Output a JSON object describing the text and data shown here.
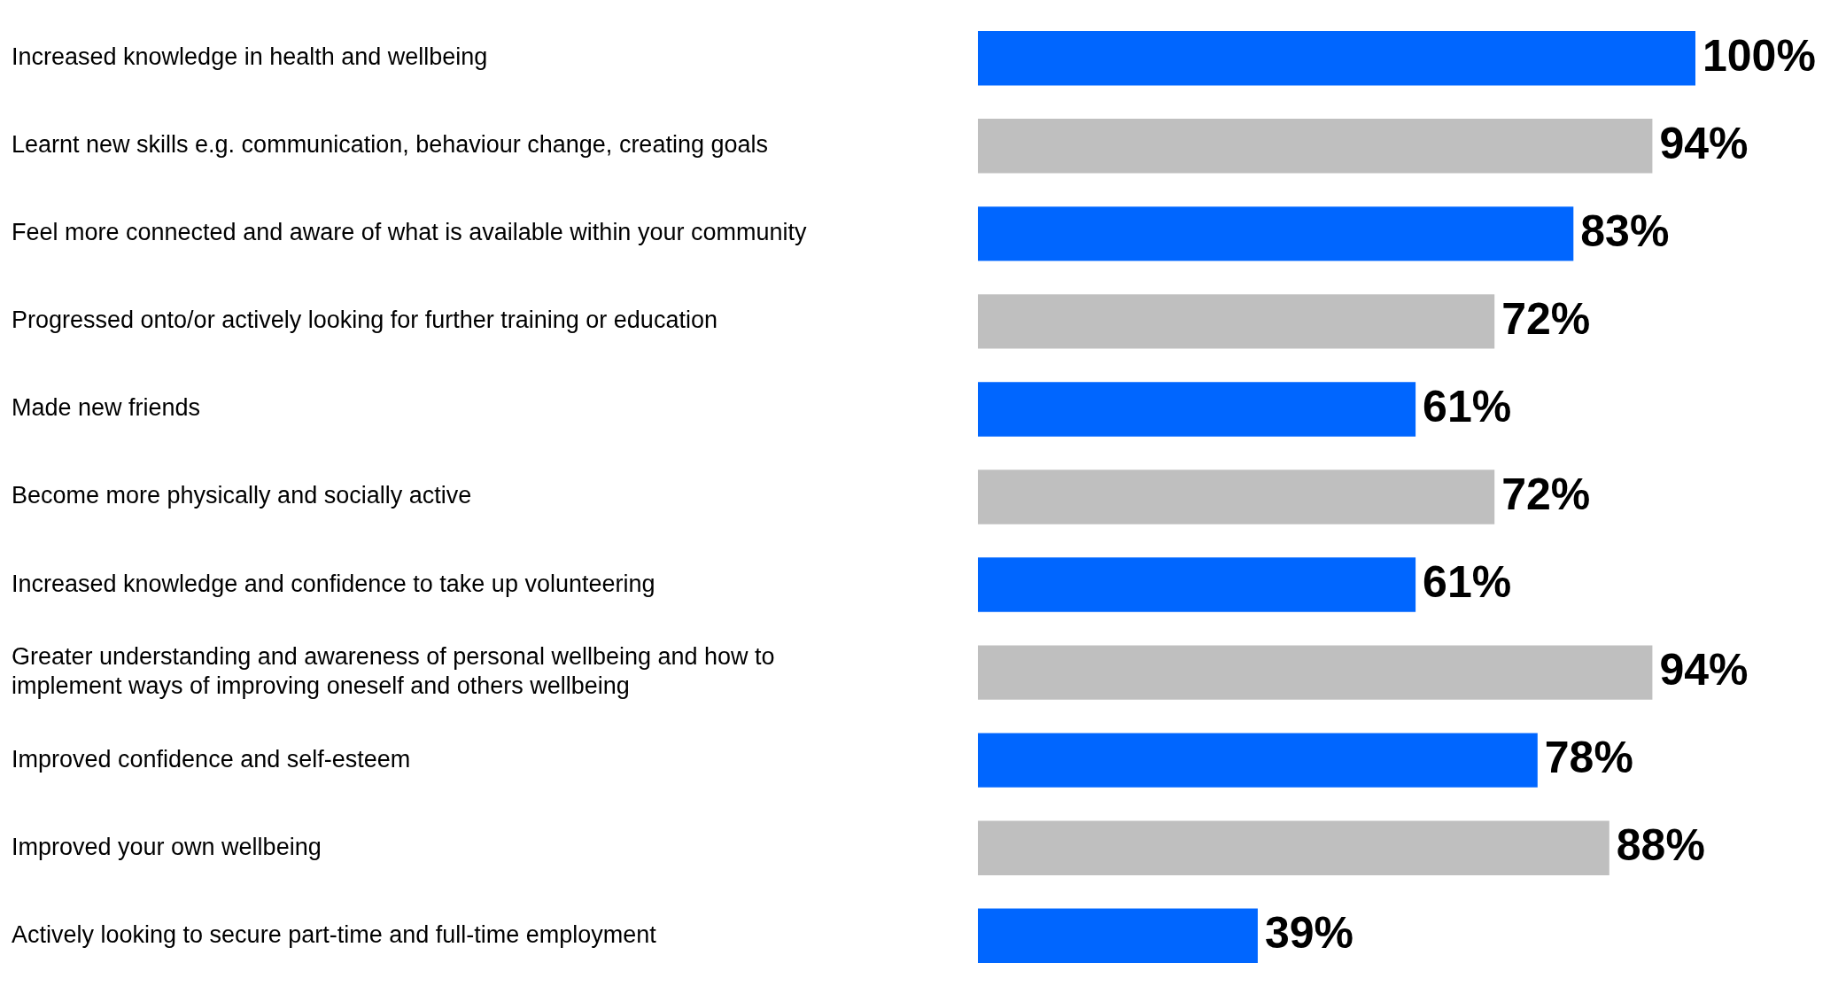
{
  "chart_data": {
    "type": "bar",
    "orientation": "horizontal",
    "categories": [
      "Increased knowledge in health and wellbeing",
      "Learnt new skills e.g. communication, behaviour change, creating goals",
      "Feel more connected and aware of what is available within your community",
      "Progressed onto/or actively looking for further training or education",
      "Made new friends",
      "Become more physically and socially active",
      "Increased knowledge and confidence to take up volunteering",
      "Greater understanding and awareness of personal wellbeing and how to implement ways of improving oneself and others wellbeing",
      "Improved confidence and self-esteem",
      "Improved your own wellbeing",
      "Actively looking to secure part-time and full-time employment"
    ],
    "values": [
      100,
      94,
      83,
      72,
      61,
      72,
      61,
      94,
      78,
      88,
      39
    ],
    "value_labels": [
      "100%",
      "94%",
      "83%",
      "72%",
      "61%",
      "72%",
      "61%",
      "94%",
      "78%",
      "88%",
      "39%"
    ],
    "colors": [
      "#0066ff",
      "#bfbfbf",
      "#0066ff",
      "#bfbfbf",
      "#0066ff",
      "#bfbfbf",
      "#0066ff",
      "#bfbfbf",
      "#0066ff",
      "#bfbfbf",
      "#0066ff"
    ],
    "xlim": [
      0,
      100
    ],
    "tick_labels": "y"
  }
}
